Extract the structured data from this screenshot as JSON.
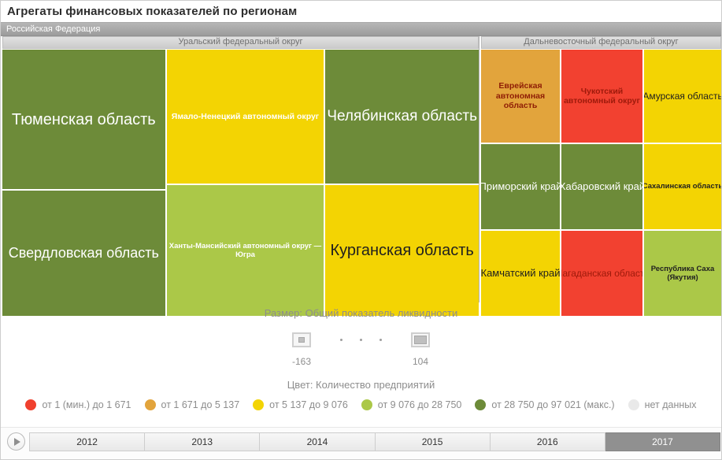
{
  "title": "Агрегаты финансовых показателей по регионам",
  "breadcrumb": "Российская Федерация",
  "chart_data": {
    "type": "treemap",
    "title": "Агрегаты финансовых показателей по регионам",
    "size_metric": "Общий показатель ликвидности",
    "size_min": -163,
    "size_max": 104,
    "color_metric": "Количество предприятий",
    "selected_year": "2017",
    "groups": [
      {
        "name": "Уральский федеральный округ",
        "cells": [
          {
            "label": "Тюменская область",
            "bg": "#6d8b39",
            "fg": "#ffffff",
            "color_bin": "от 28 750 до 97 021 (макс.)",
            "area_share_pct": 18.2
          },
          {
            "label": "Ямало-Ненецкий автономный округ",
            "bg": "#f3d403",
            "fg": "#ffffff",
            "color_bin": "от 5 137 до 9 076",
            "area_share_pct": 16.8
          },
          {
            "label": "Челябинская область",
            "bg": "#6d8b39",
            "fg": "#ffffff",
            "color_bin": "от 28 750 до 97 021 (макс.)",
            "area_share_pct": 16.3
          },
          {
            "label": "Свердловская область",
            "bg": "#6d8b39",
            "fg": "#ffffff",
            "color_bin": "от 28 750 до 97 021 (макс.)",
            "area_share_pct": 16.3
          },
          {
            "label": "Ханты-Мансийский автономный округ — Югра",
            "bg": "#abc848",
            "fg": "#ffffff",
            "color_bin": "от 9 076 до 28 750",
            "area_share_pct": 16.4
          },
          {
            "label": "Курганская область",
            "bg": "#f3d403",
            "fg": "#1f1f1f",
            "color_bin": "от 5 137 до 9 076",
            "area_share_pct": 15.9
          }
        ]
      },
      {
        "name": "Дальневосточный федеральный округ",
        "cells": [
          {
            "label": "Еврейская автономная область",
            "bg": "#e2a43c",
            "fg": "#8f1d05",
            "color_bin": "от 1 671 до 5 137",
            "area_share_pct": 11.8
          },
          {
            "label": "Чукотский автономный округ",
            "bg": "#f24130",
            "fg": "#9e1a0b",
            "color_bin": "от 1 (мин.) до 1 671",
            "area_share_pct": 12.1
          },
          {
            "label": "Амурская область",
            "bg": "#f3d403",
            "fg": "#1f1f1f",
            "color_bin": "от 5 137 до 9 076",
            "area_share_pct": 11.5
          },
          {
            "label": "Приморский край",
            "bg": "#6d8b39",
            "fg": "#ffffff",
            "color_bin": "от 28 750 до 97 021 (макс.)",
            "area_share_pct": 10.7
          },
          {
            "label": "Хабаровский край",
            "bg": "#6d8b39",
            "fg": "#ffffff",
            "color_bin": "от 28 750 до 97 021 (макс.)",
            "area_share_pct": 11.1
          },
          {
            "label": "Сахалинская область",
            "bg": "#f3d403",
            "fg": "#1f1f1f",
            "color_bin": "от 5 137 до 9 076",
            "area_share_pct": 10.5
          },
          {
            "label": "Камчатский край",
            "bg": "#f3d403",
            "fg": "#1f1f1f",
            "color_bin": "от 5 137 до 9 076",
            "area_share_pct": 10.7
          },
          {
            "label": "Магаданская область",
            "bg": "#f24130",
            "fg": "#9e1a0b",
            "color_bin": "от 1 (мин.) до 1 671",
            "area_share_pct": 11.1
          },
          {
            "label": "Республика Саха (Якутия)",
            "bg": "#abc848",
            "fg": "#1f1f1f",
            "color_bin": "от 9 076 до 28 750",
            "area_share_pct": 10.5
          }
        ]
      }
    ]
  },
  "size_legend": {
    "label": "Размер: Общий показатель ликвидности",
    "min_value": "-163",
    "max_value": "104"
  },
  "color_legend": {
    "label": "Цвет: Количество предприятий",
    "items": [
      {
        "label": "от 1 (мин.) до 1 671",
        "color": "#f0402e"
      },
      {
        "label": "от 1 671 до 5 137",
        "color": "#e2a43c"
      },
      {
        "label": "от 5 137 до 9 076",
        "color": "#f3d403"
      },
      {
        "label": "от 9 076 до 28 750",
        "color": "#abc848"
      },
      {
        "label": "от 28 750 до 97 021 (макс.)",
        "color": "#6d8b39"
      },
      {
        "label": "нет данных",
        "color": "#e9e9e9"
      }
    ]
  },
  "timeline": {
    "years": [
      {
        "label": "2012",
        "selected": false
      },
      {
        "label": "2013",
        "selected": false
      },
      {
        "label": "2014",
        "selected": false
      },
      {
        "label": "2015",
        "selected": false
      },
      {
        "label": "2016",
        "selected": false
      },
      {
        "label": "2017",
        "selected": true
      }
    ]
  }
}
